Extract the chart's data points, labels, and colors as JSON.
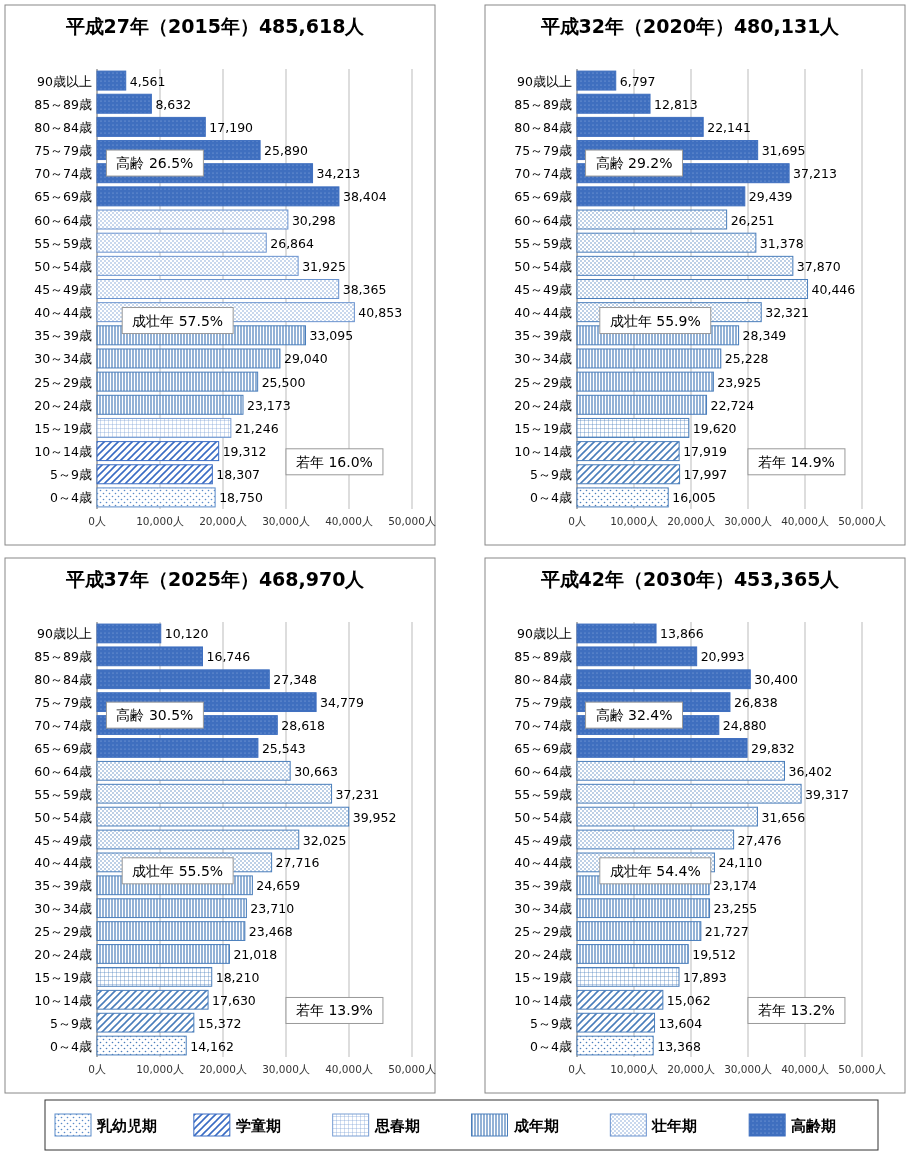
{
  "chart_data": [
    {
      "type": "bar",
      "orientation": "horizontal",
      "title": "平成27年（2015年）485,618人",
      "categories": [
        "90歳以上",
        "85～89歳",
        "80～84歳",
        "75～79歳",
        "70～74歳",
        "65～69歳",
        "60～64歳",
        "55～59歳",
        "50～54歳",
        "45～49歳",
        "40～44歳",
        "35～39歳",
        "30～34歳",
        "25～29歳",
        "20～24歳",
        "15～19歳",
        "10～14歳",
        "5～9歳",
        "0～4歳"
      ],
      "series": [
        {
          "name": "乳幼児期",
          "color": "#5b8bc9",
          "values": [
            null,
            null,
            null,
            null,
            null,
            null,
            null,
            null,
            null,
            null,
            null,
            null,
            null,
            null,
            null,
            null,
            null,
            null,
            18750
          ],
          "value_labels": [
            null,
            null,
            null,
            null,
            null,
            null,
            null,
            null,
            null,
            null,
            null,
            null,
            null,
            null,
            null,
            null,
            null,
            null,
            "18,750"
          ]
        },
        {
          "name": "学童期",
          "color": "#3a6cc4",
          "values": [
            null,
            null,
            null,
            null,
            null,
            null,
            null,
            null,
            null,
            null,
            null,
            null,
            null,
            null,
            null,
            null,
            19312,
            18307,
            null
          ],
          "value_labels": [
            null,
            null,
            null,
            null,
            null,
            null,
            null,
            null,
            null,
            null,
            null,
            null,
            null,
            null,
            null,
            null,
            "19,312",
            "18,307",
            null
          ]
        },
        {
          "name": "思春期",
          "color": "#7a9fd4",
          "values": [
            null,
            null,
            null,
            null,
            null,
            null,
            null,
            null,
            null,
            null,
            null,
            null,
            null,
            null,
            null,
            21246,
            null,
            null,
            null
          ],
          "value_labels": [
            null,
            null,
            null,
            null,
            null,
            null,
            null,
            null,
            null,
            null,
            null,
            null,
            null,
            null,
            null,
            "21,246",
            null,
            null,
            null
          ]
        },
        {
          "name": "成年期",
          "color": "#4a7ebb",
          "values": [
            null,
            null,
            null,
            null,
            null,
            null,
            null,
            null,
            null,
            null,
            null,
            33095,
            29040,
            25500,
            23173,
            null,
            null,
            null,
            null
          ],
          "value_labels": [
            null,
            null,
            null,
            null,
            null,
            null,
            null,
            null,
            null,
            null,
            null,
            "33,095",
            "29,040",
            "25,500",
            "23,173",
            null,
            null,
            null,
            null
          ]
        },
        {
          "name": "壮年期",
          "color": "#6a93cf",
          "values": [
            null,
            null,
            null,
            null,
            null,
            null,
            30298,
            26864,
            31925,
            38365,
            40853,
            null,
            null,
            null,
            null,
            null,
            null,
            null,
            null
          ],
          "value_labels": [
            null,
            null,
            null,
            null,
            null,
            null,
            "30,298",
            "26,864",
            "31,925",
            "38,365",
            "40,853",
            null,
            null,
            null,
            null,
            null,
            null,
            null,
            null
          ]
        },
        {
          "name": "高齢期",
          "color": "#3f6fbf",
          "values": [
            4561,
            8632,
            17190,
            25890,
            34213,
            38404,
            null,
            null,
            null,
            null,
            null,
            null,
            null,
            null,
            null,
            null,
            null,
            null,
            null
          ],
          "value_labels": [
            "4,561",
            "8,632",
            "17,190",
            "25,890",
            "34,213",
            "38,404",
            null,
            null,
            null,
            null,
            null,
            null,
            null,
            null,
            null,
            null,
            null,
            null,
            null
          ]
        }
      ],
      "xlim": [
        0,
        50000
      ],
      "xticks": [
        {
          "value": 0,
          "label": "0人"
        },
        {
          "value": 10000,
          "label": "10,000人"
        },
        {
          "value": 20000,
          "label": "20,000人"
        },
        {
          "value": 30000,
          "label": "30,000人"
        },
        {
          "value": 40000,
          "label": "40,000人"
        },
        {
          "value": 50000,
          "label": "50,000人"
        }
      ],
      "grid": "x",
      "legend": "bottom",
      "annotations": [
        "高齢 26.5%",
        "成壮年 57.5%",
        "若年 16.0%"
      ]
    },
    {
      "type": "bar",
      "orientation": "horizontal",
      "title": "平成32年（2020年）480,131人",
      "categories": [
        "90歳以上",
        "85～89歳",
        "80～84歳",
        "75～79歳",
        "70～74歳",
        "65～69歳",
        "60～64歳",
        "55～59歳",
        "50～54歳",
        "45～49歳",
        "40～44歳",
        "35～39歳",
        "30～34歳",
        "25～29歳",
        "20～24歳",
        "15～19歳",
        "10～14歳",
        "5～9歳",
        "0～4歳"
      ],
      "series": [
        {
          "color": "#4a7ebb",
          "values": [
            null,
            null,
            null,
            null,
            null,
            null,
            null,
            null,
            null,
            null,
            null,
            null,
            null,
            null,
            null,
            null,
            null,
            null,
            16005
          ],
          "value_labels": [
            null,
            null,
            null,
            null,
            null,
            null,
            null,
            null,
            null,
            null,
            null,
            null,
            null,
            null,
            null,
            null,
            null,
            null,
            "16,005"
          ]
        },
        {
          "color": "#4a7ebb",
          "values": [
            null,
            null,
            null,
            null,
            null,
            null,
            null,
            null,
            null,
            null,
            null,
            null,
            null,
            null,
            null,
            null,
            17919,
            17997,
            null
          ],
          "value_labels": [
            null,
            null,
            null,
            null,
            null,
            null,
            null,
            null,
            null,
            null,
            null,
            null,
            null,
            null,
            null,
            null,
            "17,919",
            "17,997",
            null
          ]
        },
        {
          "color": "#4a7ebb",
          "values": [
            null,
            null,
            null,
            null,
            null,
            null,
            null,
            null,
            null,
            null,
            null,
            null,
            null,
            null,
            null,
            19620,
            null,
            null,
            null
          ],
          "value_labels": [
            null,
            null,
            null,
            null,
            null,
            null,
            null,
            null,
            null,
            null,
            null,
            null,
            null,
            null,
            null,
            "19,620",
            null,
            null,
            null
          ]
        },
        {
          "color": "#4a7ebb",
          "values": [
            null,
            null,
            null,
            null,
            null,
            null,
            null,
            null,
            null,
            null,
            null,
            28349,
            25228,
            23925,
            22724,
            null,
            null,
            null,
            null
          ],
          "value_labels": [
            null,
            null,
            null,
            null,
            null,
            null,
            null,
            null,
            null,
            null,
            null,
            "28,349",
            "25,228",
            "23,925",
            "22,724",
            null,
            null,
            null,
            null
          ]
        },
        {
          "color": "#4a7ebb",
          "values": [
            null,
            null,
            null,
            null,
            null,
            null,
            26251,
            31378,
            37870,
            40446,
            32321,
            null,
            null,
            null,
            null,
            null,
            null,
            null,
            null
          ],
          "value_labels": [
            null,
            null,
            null,
            null,
            null,
            null,
            "26,251",
            "31,378",
            "37,870",
            "40,446",
            "32,321",
            null,
            null,
            null,
            null,
            null,
            null,
            null,
            null
          ]
        },
        {
          "color": "#3f6fbf",
          "values": [
            6797,
            12813,
            22141,
            31695,
            37213,
            29439,
            null,
            null,
            null,
            null,
            null,
            null,
            null,
            null,
            null,
            null,
            null,
            null,
            null
          ],
          "value_labels": [
            "6,797",
            "12,813",
            "22,141",
            "31,695",
            "37,213",
            "29,439",
            null,
            null,
            null,
            null,
            null,
            null,
            null,
            null,
            null,
            null,
            null,
            null,
            null
          ]
        }
      ],
      "xlim": [
        0,
        50000
      ],
      "xticks": [
        {
          "value": 0,
          "label": "0人"
        },
        {
          "value": 10000,
          "label": "10,000人"
        },
        {
          "value": 20000,
          "label": "20,000人"
        },
        {
          "value": 30000,
          "label": "30,000人"
        },
        {
          "value": 40000,
          "label": "40,000人"
        },
        {
          "value": 50000,
          "label": "50,000人"
        }
      ],
      "grid": "x",
      "annotations": [
        "高齢 29.2%",
        "成壮年 55.9%",
        "若年 14.9%"
      ]
    },
    {
      "type": "bar",
      "orientation": "horizontal",
      "title": "平成37年（2025年）468,970人",
      "categories": [
        "90歳以上",
        "85～89歳",
        "80～84歳",
        "75～79歳",
        "70～74歳",
        "65～69歳",
        "60～64歳",
        "55～59歳",
        "50～54歳",
        "45～49歳",
        "40～44歳",
        "35～39歳",
        "30～34歳",
        "25～29歳",
        "20～24歳",
        "15～19歳",
        "10～14歳",
        "5～9歳",
        "0～4歳"
      ],
      "series": [
        {
          "color": "#4a7ebb",
          "values": [
            null,
            null,
            null,
            null,
            null,
            null,
            null,
            null,
            null,
            null,
            null,
            null,
            null,
            null,
            null,
            null,
            null,
            null,
            14162
          ],
          "value_labels": [
            null,
            null,
            null,
            null,
            null,
            null,
            null,
            null,
            null,
            null,
            null,
            null,
            null,
            null,
            null,
            null,
            null,
            null,
            "14,162"
          ]
        },
        {
          "color": "#4a7ebb",
          "values": [
            null,
            null,
            null,
            null,
            null,
            null,
            null,
            null,
            null,
            null,
            null,
            null,
            null,
            null,
            null,
            null,
            17630,
            15372,
            null
          ],
          "value_labels": [
            null,
            null,
            null,
            null,
            null,
            null,
            null,
            null,
            null,
            null,
            null,
            null,
            null,
            null,
            null,
            null,
            "17,630",
            "15,372",
            null
          ]
        },
        {
          "color": "#4a7ebb",
          "values": [
            null,
            null,
            null,
            null,
            null,
            null,
            null,
            null,
            null,
            null,
            null,
            null,
            null,
            null,
            null,
            18210,
            null,
            null,
            null
          ],
          "value_labels": [
            null,
            null,
            null,
            null,
            null,
            null,
            null,
            null,
            null,
            null,
            null,
            null,
            null,
            null,
            null,
            "18,210",
            null,
            null,
            null
          ]
        },
        {
          "color": "#4a7ebb",
          "values": [
            null,
            null,
            null,
            null,
            null,
            null,
            null,
            null,
            null,
            null,
            null,
            24659,
            23710,
            23468,
            21018,
            null,
            null,
            null,
            null
          ],
          "value_labels": [
            null,
            null,
            null,
            null,
            null,
            null,
            null,
            null,
            null,
            null,
            null,
            "24,659",
            "23,710",
            "23,468",
            "21,018",
            null,
            null,
            null,
            null
          ]
        },
        {
          "color": "#4a7ebb",
          "values": [
            null,
            null,
            null,
            null,
            null,
            null,
            30663,
            37231,
            39952,
            32025,
            27716,
            null,
            null,
            null,
            null,
            null,
            null,
            null,
            null
          ],
          "value_labels": [
            null,
            null,
            null,
            null,
            null,
            null,
            "30,663",
            "37,231",
            "39,952",
            "32,025",
            "27,716",
            null,
            null,
            null,
            null,
            null,
            null,
            null,
            null
          ]
        },
        {
          "color": "#3f6fbf",
          "values": [
            10120,
            16746,
            27348,
            34779,
            28618,
            25543,
            null,
            null,
            null,
            null,
            null,
            null,
            null,
            null,
            null,
            null,
            null,
            null,
            null
          ],
          "value_labels": [
            "10,120",
            "16,746",
            "27,348",
            "34,779",
            "28,618",
            "25,543",
            null,
            null,
            null,
            null,
            null,
            null,
            null,
            null,
            null,
            null,
            null,
            null,
            null
          ]
        }
      ],
      "xlim": [
        0,
        50000
      ],
      "xticks": [
        {
          "value": 0,
          "label": "0人"
        },
        {
          "value": 10000,
          "label": "10,000人"
        },
        {
          "value": 20000,
          "label": "20,000人"
        },
        {
          "value": 30000,
          "label": "30,000人"
        },
        {
          "value": 40000,
          "label": "40,000人"
        },
        {
          "value": 50000,
          "label": "50,000人"
        }
      ],
      "grid": "x",
      "annotations": [
        "高齢 30.5%",
        "成壮年 55.5%",
        "若年 13.9%"
      ]
    },
    {
      "type": "bar",
      "orientation": "horizontal",
      "title": "平成42年（2030年）453,365人",
      "categories": [
        "90歳以上",
        "85～89歳",
        "80～84歳",
        "75～79歳",
        "70～74歳",
        "65～69歳",
        "60～64歳",
        "55～59歳",
        "50～54歳",
        "45～49歳",
        "40～44歳",
        "35～39歳",
        "30～34歳",
        "25～29歳",
        "20～24歳",
        "15～19歳",
        "10～14歳",
        "5～9歳",
        "0～4歳"
      ],
      "series": [
        {
          "color": "#4a7ebb",
          "values": [
            null,
            null,
            null,
            null,
            null,
            null,
            null,
            null,
            null,
            null,
            null,
            null,
            null,
            null,
            null,
            null,
            null,
            null,
            13368
          ],
          "value_labels": [
            null,
            null,
            null,
            null,
            null,
            null,
            null,
            null,
            null,
            null,
            null,
            null,
            null,
            null,
            null,
            null,
            null,
            null,
            "13,368"
          ]
        },
        {
          "color": "#4a7ebb",
          "values": [
            null,
            null,
            null,
            null,
            null,
            null,
            null,
            null,
            null,
            null,
            null,
            null,
            null,
            null,
            null,
            null,
            15062,
            13604,
            null
          ],
          "value_labels": [
            null,
            null,
            null,
            null,
            null,
            null,
            null,
            null,
            null,
            null,
            null,
            null,
            null,
            null,
            null,
            null,
            "15,062",
            "13,604",
            null
          ]
        },
        {
          "color": "#4a7ebb",
          "values": [
            null,
            null,
            null,
            null,
            null,
            null,
            null,
            null,
            null,
            null,
            null,
            null,
            null,
            null,
            null,
            17893,
            null,
            null,
            null
          ],
          "value_labels": [
            null,
            null,
            null,
            null,
            null,
            null,
            null,
            null,
            null,
            null,
            null,
            null,
            null,
            null,
            null,
            "17,893",
            null,
            null,
            null
          ]
        },
        {
          "color": "#4a7ebb",
          "values": [
            null,
            null,
            null,
            null,
            null,
            null,
            null,
            null,
            null,
            null,
            null,
            23174,
            23255,
            21727,
            19512,
            null,
            null,
            null,
            null
          ],
          "value_labels": [
            null,
            null,
            null,
            null,
            null,
            null,
            null,
            null,
            null,
            null,
            null,
            "23,174",
            "23,255",
            "21,727",
            "19,512",
            null,
            null,
            null,
            null
          ]
        },
        {
          "color": "#4a7ebb",
          "values": [
            null,
            null,
            null,
            null,
            null,
            null,
            36402,
            39317,
            31656,
            27476,
            24110,
            null,
            null,
            null,
            null,
            null,
            null,
            null,
            null
          ],
          "value_labels": [
            null,
            null,
            null,
            null,
            null,
            null,
            "36,402",
            "39,317",
            "31,656",
            "27,476",
            "24,110",
            null,
            null,
            null,
            null,
            null,
            null,
            null,
            null
          ]
        },
        {
          "color": "#3f6fbf",
          "values": [
            13866,
            20993,
            30400,
            26838,
            24880,
            29832,
            null,
            null,
            null,
            null,
            null,
            null,
            null,
            null,
            null,
            null,
            null,
            null,
            null
          ],
          "value_labels": [
            "13,866",
            "20,993",
            "30,400",
            "26,838",
            "24,880",
            "29,832",
            null,
            null,
            null,
            null,
            null,
            null,
            null,
            null,
            null,
            null,
            null,
            null,
            null
          ]
        }
      ],
      "xlim": [
        0,
        50000
      ],
      "xticks": [
        {
          "value": 0,
          "label": "0人"
        },
        {
          "value": 10000,
          "label": "10,000人"
        },
        {
          "value": 20000,
          "label": "20,000人"
        },
        {
          "value": 30000,
          "label": "30,000人"
        },
        {
          "value": 40000,
          "label": "40,000人"
        },
        {
          "value": 50000,
          "label": "50,000人"
        }
      ],
      "grid": "x",
      "annotations": [
        "高齢 32.4%",
        "成壮年 54.4%",
        "若年 13.2%"
      ]
    }
  ]
}
